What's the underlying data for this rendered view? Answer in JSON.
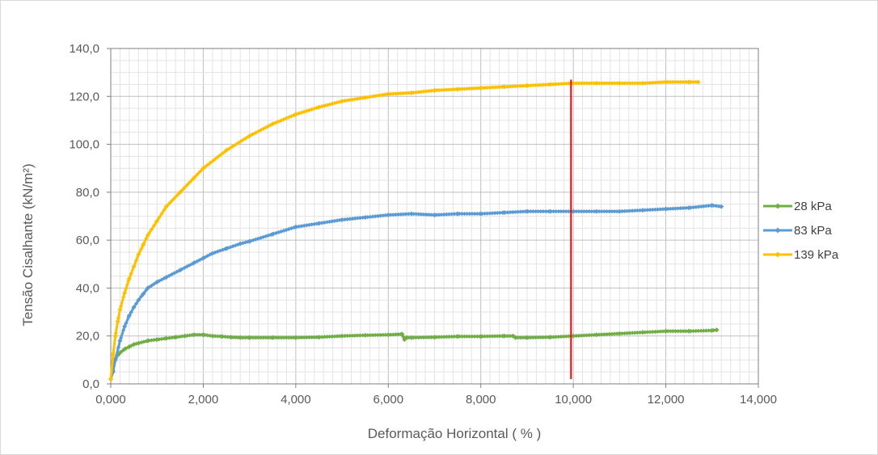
{
  "chart_data": {
    "type": "line",
    "xlabel": "Deformação Horizontal ( % )",
    "ylabel": "Tensão Cisalhante (kN/m²)",
    "xlim": [
      0,
      14
    ],
    "ylim": [
      0,
      140
    ],
    "x_ticks": [
      0,
      2,
      4,
      6,
      8,
      10,
      12,
      14
    ],
    "x_tick_labels": [
      "0,000",
      "2,000",
      "4,000",
      "6,000",
      "8,000",
      "10,000",
      "12,000",
      "14,000"
    ],
    "y_ticks": [
      0,
      20,
      40,
      60,
      80,
      100,
      120,
      140
    ],
    "y_tick_labels": [
      "0,0",
      "20,0",
      "40,0",
      "60,0",
      "80,0",
      "100,0",
      "120,0",
      "140,0"
    ],
    "grid": true,
    "legend_position": "right",
    "vertical_marker": {
      "x": 9.95,
      "y_range": [
        2,
        127
      ],
      "color": "#ff0000"
    },
    "series": [
      {
        "name": "28 kPa",
        "color": "#70ad47",
        "x": [
          0.0,
          0.05,
          0.1,
          0.2,
          0.3,
          0.4,
          0.5,
          0.6,
          0.8,
          1.0,
          1.2,
          1.4,
          1.6,
          1.8,
          2.0,
          2.2,
          2.4,
          2.6,
          2.8,
          3.0,
          3.5,
          4.0,
          4.5,
          5.0,
          5.5,
          6.0,
          6.3,
          6.35,
          6.4,
          6.5,
          7.0,
          7.5,
          8.0,
          8.5,
          8.7,
          8.75,
          9.0,
          9.5,
          10.0,
          10.5,
          11.0,
          11.5,
          12.0,
          12.5,
          13.0,
          13.1
        ],
        "values": [
          2.0,
          8.0,
          10.5,
          13.0,
          14.5,
          15.5,
          16.5,
          17.0,
          18.0,
          18.5,
          19.0,
          19.5,
          20.0,
          20.5,
          20.5,
          20.0,
          19.8,
          19.5,
          19.3,
          19.3,
          19.3,
          19.3,
          19.5,
          20.0,
          20.3,
          20.5,
          20.8,
          18.5,
          19.3,
          19.3,
          19.5,
          19.8,
          19.8,
          20.0,
          20.0,
          19.3,
          19.3,
          19.5,
          20.0,
          20.5,
          21.0,
          21.5,
          22.0,
          22.0,
          22.3,
          22.5
        ]
      },
      {
        "name": "83 kPa",
        "color": "#5b9bd5",
        "x": [
          0.0,
          0.05,
          0.1,
          0.2,
          0.3,
          0.4,
          0.5,
          0.6,
          0.7,
          0.8,
          1.0,
          1.2,
          1.5,
          1.8,
          2.0,
          2.2,
          2.5,
          2.8,
          3.0,
          3.5,
          4.0,
          4.5,
          5.0,
          5.5,
          6.0,
          6.5,
          7.0,
          7.5,
          8.0,
          8.5,
          9.0,
          9.5,
          10.0,
          10.5,
          11.0,
          11.5,
          12.0,
          12.5,
          13.0,
          13.2
        ],
        "values": [
          2.0,
          5.0,
          10.0,
          18.0,
          24.0,
          28.5,
          32.0,
          35.0,
          37.5,
          40.0,
          42.5,
          44.5,
          47.5,
          50.5,
          52.5,
          54.5,
          56.5,
          58.5,
          59.5,
          62.5,
          65.5,
          67.0,
          68.5,
          69.5,
          70.5,
          71.0,
          70.5,
          71.0,
          71.0,
          71.5,
          72.0,
          72.0,
          72.0,
          72.0,
          72.0,
          72.5,
          73.0,
          73.5,
          74.5,
          74.0
        ]
      },
      {
        "name": "139 kPa",
        "color": "#ffc000",
        "x": [
          0.0,
          0.05,
          0.1,
          0.15,
          0.2,
          0.3,
          0.4,
          0.5,
          0.6,
          0.7,
          0.8,
          1.0,
          1.2,
          1.5,
          1.8,
          2.0,
          2.5,
          3.0,
          3.5,
          4.0,
          4.5,
          5.0,
          5.5,
          6.0,
          6.5,
          7.0,
          7.5,
          8.0,
          8.5,
          9.0,
          9.5,
          10.0,
          10.5,
          11.0,
          11.5,
          12.0,
          12.5,
          12.7
        ],
        "values": [
          2.0,
          12.0,
          20.0,
          26.0,
          31.0,
          38.0,
          44.0,
          49.0,
          54.0,
          58.0,
          62.0,
          68.0,
          74.0,
          80.0,
          86.0,
          90.0,
          97.5,
          103.5,
          108.5,
          112.5,
          115.5,
          118.0,
          119.5,
          121.0,
          121.5,
          122.5,
          123.0,
          123.5,
          124.0,
          124.5,
          125.0,
          125.5,
          125.5,
          125.5,
          125.5,
          126.0,
          126.0,
          126.0
        ]
      }
    ]
  }
}
